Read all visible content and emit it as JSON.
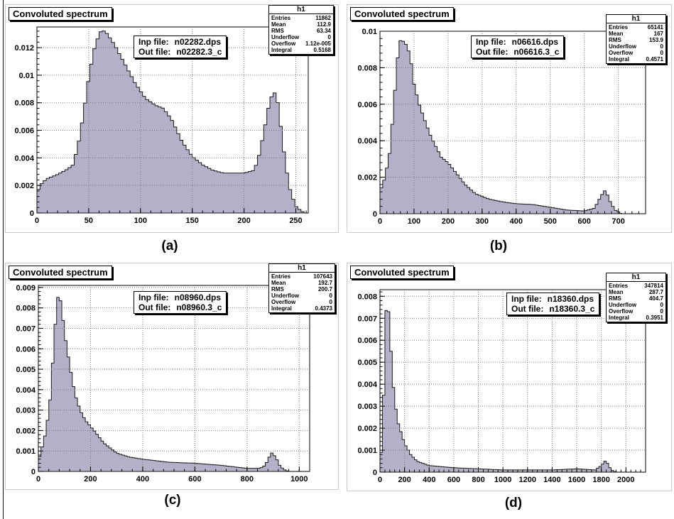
{
  "theme": {
    "fill": "#b3b0c8",
    "outline": "#1a1a1a",
    "grid": "#7a7a7a"
  },
  "chart_data": [
    {
      "type": "area",
      "title": "Convoluted spectrum",
      "caption": "(a)",
      "stats": {
        "name": "h1",
        "rows": [
          [
            "Entries",
            "11862"
          ],
          [
            "Mean",
            "112.9"
          ],
          [
            "RMS",
            "63.34"
          ],
          [
            "Underflow",
            "0"
          ],
          [
            "Overflow",
            "1.12e-005"
          ],
          [
            "Integral",
            "0.5168"
          ]
        ]
      },
      "files": {
        "inp_label": "Inp file:",
        "inp_value": "n02282.dps",
        "out_label": "Out file:",
        "out_value": "n02282.3_c"
      },
      "xlim": [
        0,
        262
      ],
      "ylim": [
        0,
        0.0135
      ],
      "x_ticks": [
        {
          "v": 0,
          "t": "0"
        },
        {
          "v": 50,
          "t": "50"
        },
        {
          "v": 100,
          "t": "100"
        },
        {
          "v": 150,
          "t": "150"
        },
        {
          "v": 200,
          "t": "200"
        },
        {
          "v": 250,
          "t": "250"
        }
      ],
      "y_ticks": [
        {
          "v": 0,
          "t": "0"
        },
        {
          "v": 0.002,
          "t": "0.002"
        },
        {
          "v": 0.004,
          "t": "0.004"
        },
        {
          "v": 0.006,
          "t": "0.006"
        },
        {
          "v": 0.008,
          "t": "0.008"
        },
        {
          "v": 0.01,
          "t": "0.01"
        },
        {
          "v": 0.012,
          "t": "0.012"
        }
      ],
      "x_grid": [
        50,
        100,
        150,
        200,
        250
      ],
      "y_grid": [
        0.002,
        0.004,
        0.006,
        0.008,
        0.01,
        0.012
      ],
      "bin_width": 3,
      "curve": [
        [
          0,
          0.0015
        ],
        [
          5,
          0.0022
        ],
        [
          10,
          0.0025
        ],
        [
          20,
          0.0028
        ],
        [
          30,
          0.0032
        ],
        [
          35,
          0.0035
        ],
        [
          40,
          0.005
        ],
        [
          45,
          0.0072
        ],
        [
          50,
          0.0098
        ],
        [
          55,
          0.0118
        ],
        [
          60,
          0.013
        ],
        [
          63,
          0.0133
        ],
        [
          68,
          0.013
        ],
        [
          75,
          0.0122
        ],
        [
          85,
          0.0108
        ],
        [
          95,
          0.0094
        ],
        [
          105,
          0.0083
        ],
        [
          115,
          0.0078
        ],
        [
          122,
          0.0076
        ],
        [
          130,
          0.0068
        ],
        [
          140,
          0.0052
        ],
        [
          150,
          0.0041
        ],
        [
          160,
          0.0035
        ],
        [
          170,
          0.0031
        ],
        [
          180,
          0.0029
        ],
        [
          190,
          0.0029
        ],
        [
          200,
          0.0029
        ],
        [
          210,
          0.0031
        ],
        [
          215,
          0.0043
        ],
        [
          220,
          0.0062
        ],
        [
          225,
          0.0082
        ],
        [
          229,
          0.0088
        ],
        [
          232,
          0.0083
        ],
        [
          236,
          0.006
        ],
        [
          240,
          0.0035
        ],
        [
          245,
          0.0015
        ],
        [
          250,
          0.0005
        ],
        [
          255,
          0.00015
        ],
        [
          259,
          0
        ]
      ]
    },
    {
      "type": "area",
      "title": "Convoluted spectrum",
      "caption": "(b)",
      "stats": {
        "name": "h1",
        "rows": [
          [
            "Entries",
            "65141"
          ],
          [
            "Mean",
            "167"
          ],
          [
            "RMS",
            "153.9"
          ],
          [
            "Underflow",
            "0"
          ],
          [
            "Overflow",
            "0"
          ],
          [
            "Integral",
            "0.4571"
          ]
        ]
      },
      "files": {
        "inp_label": "Inp file:",
        "inp_value": "n06616.dps",
        "out_label": "Out file:",
        "out_value": "n06616.3_c"
      },
      "xlim": [
        0,
        780
      ],
      "ylim": [
        0,
        0.01
      ],
      "x_ticks": [
        {
          "v": 0,
          "t": "0"
        },
        {
          "v": 100,
          "t": "100"
        },
        {
          "v": 200,
          "t": "200"
        },
        {
          "v": 300,
          "t": "300"
        },
        {
          "v": 400,
          "t": "400"
        },
        {
          "v": 500,
          "t": "500"
        },
        {
          "v": 600,
          "t": "600"
        },
        {
          "v": 700,
          "t": "700"
        }
      ],
      "y_ticks": [
        {
          "v": 0,
          "t": "0"
        },
        {
          "v": 0.002,
          "t": "0.002"
        },
        {
          "v": 0.004,
          "t": "0.004"
        },
        {
          "v": 0.006,
          "t": "0.006"
        },
        {
          "v": 0.008,
          "t": "0.008"
        },
        {
          "v": 0.01,
          "t": "0.01"
        }
      ],
      "x_grid": [
        100,
        200,
        300,
        400,
        500,
        600,
        700
      ],
      "y_grid": [
        0.002,
        0.004,
        0.006,
        0.008
      ],
      "bin_width": 8,
      "curve": [
        [
          0,
          0.0012
        ],
        [
          15,
          0.002
        ],
        [
          30,
          0.0035
        ],
        [
          45,
          0.007
        ],
        [
          55,
          0.0092
        ],
        [
          62,
          0.0096
        ],
        [
          70,
          0.0094
        ],
        [
          80,
          0.0092
        ],
        [
          90,
          0.0085
        ],
        [
          100,
          0.0071
        ],
        [
          115,
          0.006
        ],
        [
          130,
          0.0052
        ],
        [
          150,
          0.0042
        ],
        [
          180,
          0.0031
        ],
        [
          200,
          0.0028
        ],
        [
          225,
          0.0022
        ],
        [
          250,
          0.0016
        ],
        [
          280,
          0.0011
        ],
        [
          320,
          0.0008
        ],
        [
          360,
          0.00065
        ],
        [
          400,
          0.00055
        ],
        [
          450,
          0.0005
        ],
        [
          500,
          0.00035
        ],
        [
          550,
          0.0002
        ],
        [
          600,
          0.00015
        ],
        [
          630,
          0.0003
        ],
        [
          650,
          0.001
        ],
        [
          662,
          0.0013
        ],
        [
          675,
          0.0007
        ],
        [
          690,
          0.0002
        ],
        [
          710,
          0
        ]
      ]
    },
    {
      "type": "area",
      "title": "Convoluted spectrum",
      "caption": "(c)",
      "stats": {
        "name": "h1",
        "rows": [
          [
            "Entries",
            "107643"
          ],
          [
            "Mean",
            "192.7"
          ],
          [
            "RMS",
            "200.7"
          ],
          [
            "Underflow",
            "0"
          ],
          [
            "Overflow",
            "0"
          ],
          [
            "Integral",
            "0.4373"
          ]
        ]
      },
      "files": {
        "inp_label": "Inp file:",
        "inp_value": "n08960.dps",
        "out_label": "Out file:",
        "out_value": "n08960.3_c"
      },
      "xlim": [
        0,
        1040
      ],
      "ylim": [
        0,
        0.0091
      ],
      "x_ticks": [
        {
          "v": 0,
          "t": "0"
        },
        {
          "v": 200,
          "t": "200"
        },
        {
          "v": 400,
          "t": "400"
        },
        {
          "v": 600,
          "t": "600"
        },
        {
          "v": 800,
          "t": "800"
        },
        {
          "v": 1000,
          "t": "1000"
        }
      ],
      "y_ticks": [
        {
          "v": 0,
          "t": "0"
        },
        {
          "v": 0.001,
          "t": "0.001"
        },
        {
          "v": 0.002,
          "t": "0.002"
        },
        {
          "v": 0.003,
          "t": "0.003"
        },
        {
          "v": 0.004,
          "t": "0.004"
        },
        {
          "v": 0.005,
          "t": "0.005"
        },
        {
          "v": 0.006,
          "t": "0.006"
        },
        {
          "v": 0.007,
          "t": "0.007"
        },
        {
          "v": 0.008,
          "t": "0.008"
        },
        {
          "v": 0.009,
          "t": "0.009"
        }
      ],
      "x_grid": [
        200,
        400,
        600,
        800,
        1000
      ],
      "y_grid": [
        0.001,
        0.002,
        0.003,
        0.004,
        0.005,
        0.006,
        0.007,
        0.008,
        0.009
      ],
      "bin_width": 10,
      "curve": [
        [
          0,
          0.0005
        ],
        [
          15,
          0.0012
        ],
        [
          30,
          0.002
        ],
        [
          45,
          0.0035
        ],
        [
          60,
          0.0062
        ],
        [
          70,
          0.0082
        ],
        [
          78,
          0.0087
        ],
        [
          88,
          0.0082
        ],
        [
          100,
          0.0068
        ],
        [
          120,
          0.0052
        ],
        [
          140,
          0.0038
        ],
        [
          160,
          0.003
        ],
        [
          180,
          0.0025
        ],
        [
          200,
          0.0022
        ],
        [
          220,
          0.0019
        ],
        [
          250,
          0.0014
        ],
        [
          300,
          0.0009
        ],
        [
          350,
          0.0007
        ],
        [
          400,
          0.0006
        ],
        [
          500,
          0.00045
        ],
        [
          600,
          0.0004
        ],
        [
          700,
          0.0003
        ],
        [
          800,
          0.00015
        ],
        [
          850,
          0.00015
        ],
        [
          870,
          0.0003
        ],
        [
          885,
          0.0007
        ],
        [
          895,
          0.0009
        ],
        [
          910,
          0.0007
        ],
        [
          925,
          0.0003
        ],
        [
          940,
          0.0001
        ],
        [
          960,
          0
        ]
      ]
    },
    {
      "type": "area",
      "title": "Convoluted spectrum",
      "caption": "(d)",
      "stats": {
        "name": "h1",
        "rows": [
          [
            "Entries",
            "347814"
          ],
          [
            "Mean",
            "287.7"
          ],
          [
            "RMS",
            "404.7"
          ],
          [
            "Underflow",
            "0"
          ],
          [
            "Overflow",
            "0"
          ],
          [
            "Integral",
            "0.3951"
          ]
        ]
      },
      "files": {
        "inp_label": "Inp file:",
        "inp_value": "n18360.dps",
        "out_label": "Out file:",
        "out_value": "n18360.3_c"
      },
      "xlim": [
        0,
        2160
      ],
      "ylim": [
        0,
        0.0083
      ],
      "x_ticks": [
        {
          "v": 0,
          "t": "0"
        },
        {
          "v": 200,
          "t": "200"
        },
        {
          "v": 400,
          "t": "400"
        },
        {
          "v": 600,
          "t": "600"
        },
        {
          "v": 800,
          "t": "800"
        },
        {
          "v": 1000,
          "t": "1000"
        },
        {
          "v": 1200,
          "t": "1200"
        },
        {
          "v": 1400,
          "t": "1400"
        },
        {
          "v": 1600,
          "t": "1600"
        },
        {
          "v": 1800,
          "t": "1800"
        },
        {
          "v": 2000,
          "t": "2000"
        }
      ],
      "y_ticks": [
        {
          "v": 0,
          "t": "0"
        },
        {
          "v": 0.001,
          "t": "0.001"
        },
        {
          "v": 0.002,
          "t": "0.002"
        },
        {
          "v": 0.003,
          "t": "0.003"
        },
        {
          "v": 0.004,
          "t": "0.004"
        },
        {
          "v": 0.005,
          "t": "0.005"
        },
        {
          "v": 0.006,
          "t": "0.006"
        },
        {
          "v": 0.007,
          "t": "0.007"
        },
        {
          "v": 0.008,
          "t": "0.008"
        }
      ],
      "x_grid": [
        200,
        400,
        600,
        800,
        1000,
        1200,
        1400,
        1600,
        1800,
        2000
      ],
      "y_grid": [
        0.001,
        0.002,
        0.003,
        0.004,
        0.005,
        0.006,
        0.007,
        0.008
      ],
      "bin_width": 20,
      "curve": [
        [
          0,
          0.0003
        ],
        [
          15,
          0.0012
        ],
        [
          30,
          0.0035
        ],
        [
          45,
          0.0068
        ],
        [
          55,
          0.0079
        ],
        [
          65,
          0.0077
        ],
        [
          80,
          0.0065
        ],
        [
          100,
          0.0045
        ],
        [
          120,
          0.0032
        ],
        [
          150,
          0.0022
        ],
        [
          200,
          0.0013
        ],
        [
          250,
          0.0008
        ],
        [
          300,
          0.0005
        ],
        [
          400,
          0.0003
        ],
        [
          600,
          0.0002
        ],
        [
          800,
          0.00015
        ],
        [
          1000,
          0.0001
        ],
        [
          1400,
          0.0001
        ],
        [
          1600,
          0.00015
        ],
        [
          1750,
          0.0001
        ],
        [
          1800,
          0.0003
        ],
        [
          1830,
          0.0005
        ],
        [
          1850,
          0.0004
        ],
        [
          1880,
          0.0001
        ],
        [
          1920,
          0
        ]
      ]
    }
  ]
}
